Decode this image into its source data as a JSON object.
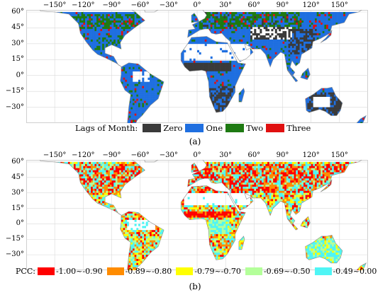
{
  "colors": {
    "zero": "#3a3a3a",
    "one": "#1f6fe0",
    "two": "#1e7a12",
    "three": "#e01010",
    "pcc1": "#ff0000",
    "pcc2": "#ff8c00",
    "pcc3": "#ffff00",
    "pcc4": "#b4ff9a",
    "pcc5": "#4ff5f5",
    "coast": "#8c8c8c",
    "grid": "#d9d9d9"
  },
  "panel_a": {
    "lon_ticks": [
      "−150°",
      "−120°",
      "−90°",
      "−60°",
      "−30°",
      "0°",
      "30°",
      "60°",
      "90°",
      "120°",
      "150°"
    ],
    "lat_ticks": [
      "60°",
      "45°",
      "30°",
      "15°",
      "0°",
      "−15°",
      "−30°"
    ],
    "legend": {
      "title": "Lags of Month:",
      "items": [
        "Zero",
        "One",
        "Two",
        "Three"
      ]
    },
    "caption": "(a)"
  },
  "panel_b": {
    "lon_ticks": [
      "−150°",
      "−120°",
      "−90°",
      "−60°",
      "−30°",
      "0°",
      "30°",
      "60°",
      "90°",
      "120°",
      "150°"
    ],
    "lat_ticks": [
      "60°",
      "45°",
      "30°",
      "15°",
      "0°",
      "−15°",
      "−30°"
    ],
    "legend": {
      "title": "PCC:",
      "items": [
        "-1.00~-0.90",
        "-0.89~-0.80",
        "-0.79~-0.70",
        "-0.69~-0.50",
        "-0.49~0.00"
      ]
    },
    "caption": "(b)"
  }
}
